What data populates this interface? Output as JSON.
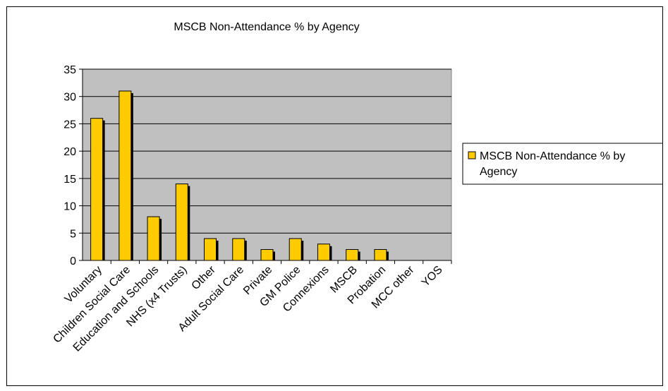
{
  "chart_data": {
    "type": "bar",
    "title": "MSCB Non-Attendance % by Agency",
    "categories": [
      "Voluntary",
      "Children Social Care",
      "Education and Schools",
      "NHS (x4 Trusts)",
      "Other",
      "Adult Social Care",
      "Private",
      "GM Police",
      "Connexions",
      "MSCB",
      "Probation",
      "MCC other",
      "YOS"
    ],
    "series": [
      {
        "name": "MSCB Non-Attendance % by Agency",
        "values": [
          26,
          31,
          8,
          14,
          4,
          4,
          2,
          4,
          3,
          2,
          2,
          0,
          0
        ]
      }
    ],
    "ylim": [
      0,
      35
    ],
    "yticks": [
      0,
      5,
      10,
      15,
      20,
      25,
      30,
      35
    ],
    "grid": true,
    "legend_position": "right",
    "legend_lines": [
      "MSCB Non-Attendance % by",
      "Agency"
    ],
    "colors": {
      "bar": "#FFCC00",
      "shadow": "#000000",
      "plot_bg": "#C0C0C0",
      "gridline": "#000000"
    }
  }
}
